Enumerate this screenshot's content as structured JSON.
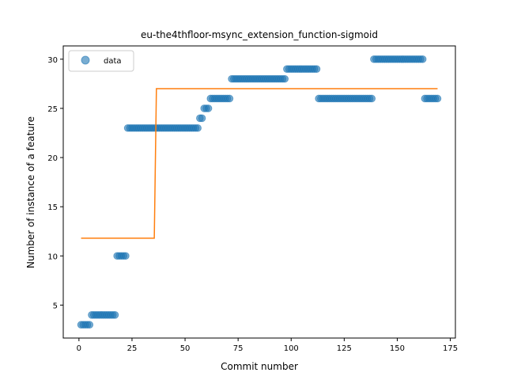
{
  "chart_data": {
    "type": "scatter",
    "title": "eu-the4thfloor-msync_extension_function-sigmoid",
    "xlabel": "Commit number",
    "ylabel": "Number of instance of a feature",
    "xlim": [
      -7.4,
      177.4
    ],
    "ylim": [
      1.65,
      31.35
    ],
    "xticks": [
      0,
      25,
      50,
      75,
      100,
      125,
      150,
      175
    ],
    "yticks": [
      5,
      10,
      15,
      20,
      25,
      30
    ],
    "grid": false,
    "legend_position": "top-left",
    "legend": [
      "data"
    ],
    "colors": {
      "data": "#1f77b4",
      "fit": "#ff7f0e"
    },
    "series": [
      {
        "name": "data",
        "kind": "scatter",
        "segments": [
          {
            "x_start": 1,
            "x_end": 5,
            "y": 3
          },
          {
            "x_start": 6,
            "x_end": 17,
            "y": 4
          },
          {
            "x_start": 18,
            "x_end": 22,
            "y": 10
          },
          {
            "x_start": 23,
            "x_end": 56,
            "y": 23
          },
          {
            "x_start": 57,
            "x_end": 58,
            "y": 24
          },
          {
            "x_start": 59,
            "x_end": 61,
            "y": 25
          },
          {
            "x_start": 62,
            "x_end": 71,
            "y": 26
          },
          {
            "x_start": 72,
            "x_end": 97,
            "y": 28
          },
          {
            "x_start": 98,
            "x_end": 112,
            "y": 29
          },
          {
            "x_start": 113,
            "x_end": 138,
            "y": 26
          },
          {
            "x_start": 139,
            "x_end": 162,
            "y": 30
          },
          {
            "x_start": 163,
            "x_end": 169,
            "y": 26
          }
        ]
      },
      {
        "kind": "line",
        "x": [
          1,
          35.5,
          36.5,
          169
        ],
        "y": [
          11.8,
          11.8,
          27,
          27
        ]
      }
    ]
  }
}
